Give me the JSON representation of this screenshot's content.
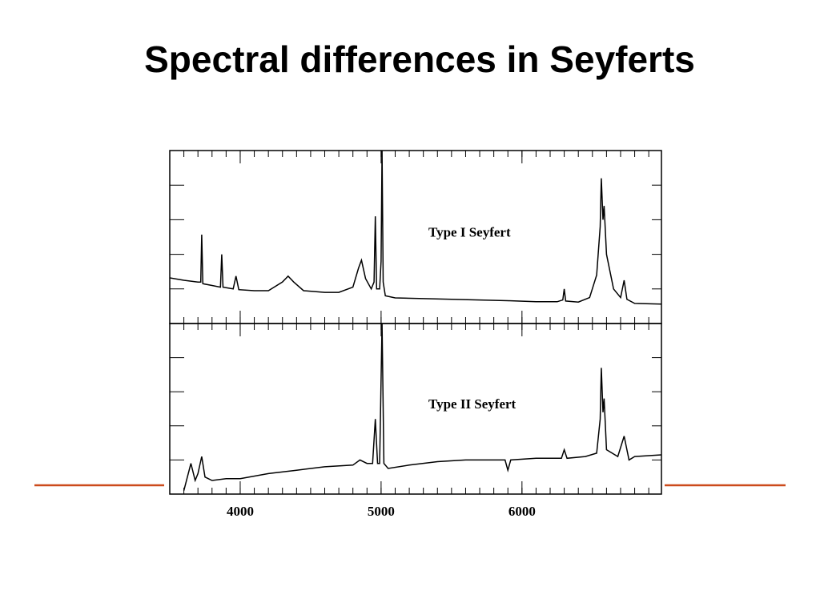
{
  "title": "Spectral differences in Seyferts",
  "chart_data": [
    {
      "type": "line",
      "annotation": "Type I Seyfert",
      "color": "#000000",
      "xlim": [
        3500,
        6990
      ],
      "xticks": [
        4000,
        5000,
        6000
      ],
      "xtick_labels": false,
      "ylim": [
        0,
        5
      ],
      "yticks": [
        1,
        2,
        3,
        4
      ],
      "x": [
        3500,
        3600,
        3700,
        3720,
        3727,
        3735,
        3800,
        3860,
        3869,
        3878,
        3950,
        3970,
        3990,
        4100,
        4200,
        4300,
        4340,
        4380,
        4450,
        4600,
        4700,
        4800,
        4840,
        4861,
        4890,
        4930,
        4950,
        4959,
        4968,
        4990,
        5000,
        5007,
        5015,
        5030,
        5100,
        5300,
        5500,
        5700,
        5900,
        6100,
        6250,
        6290,
        6300,
        6310,
        6400,
        6480,
        6530,
        6555,
        6563,
        6575,
        6583,
        6600,
        6650,
        6700,
        6725,
        6745,
        6800,
        6990
      ],
      "values": [
        1.32,
        1.25,
        1.2,
        1.2,
        2.57,
        1.15,
        1.1,
        1.05,
        2.0,
        1.05,
        1.0,
        1.37,
        0.98,
        0.95,
        0.95,
        1.2,
        1.37,
        1.2,
        0.95,
        0.9,
        0.9,
        1.05,
        1.6,
        1.83,
        1.3,
        1.0,
        1.2,
        3.1,
        1.0,
        1.0,
        1.8,
        5,
        1.2,
        0.8,
        0.74,
        0.72,
        0.7,
        0.68,
        0.66,
        0.63,
        0.63,
        0.68,
        1.0,
        0.65,
        0.62,
        0.75,
        1.4,
        2.8,
        4.2,
        3.0,
        3.4,
        2.0,
        1.0,
        0.75,
        1.25,
        0.7,
        0.58,
        0.56
      ]
    },
    {
      "type": "line",
      "annotation": "Type II Seyfert",
      "color": "#000000",
      "xlim": [
        3500,
        6990
      ],
      "xticks": [
        4000,
        5000,
        6000
      ],
      "xtick_labels": true,
      "ylim": [
        0,
        5
      ],
      "yticks": [
        1,
        2,
        3,
        4
      ],
      "x": [
        3600,
        3650,
        3680,
        3700,
        3727,
        3750,
        3800,
        3900,
        4000,
        4200,
        4400,
        4600,
        4800,
        4850,
        4900,
        4940,
        4959,
        4975,
        4990,
        5007,
        5020,
        5050,
        5200,
        5400,
        5600,
        5800,
        5880,
        5900,
        5920,
        6100,
        6280,
        6300,
        6320,
        6450,
        6530,
        6555,
        6563,
        6575,
        6583,
        6600,
        6680,
        6725,
        6760,
        6800,
        6990
      ],
      "values": [
        0.1,
        0.9,
        0.4,
        0.6,
        1.1,
        0.5,
        0.4,
        0.45,
        0.45,
        0.6,
        0.7,
        0.8,
        0.85,
        1.0,
        0.9,
        0.9,
        2.2,
        0.9,
        0.9,
        5,
        0.9,
        0.75,
        0.85,
        0.95,
        1.0,
        1.0,
        1.0,
        0.7,
        1.0,
        1.05,
        1.05,
        1.3,
        1.05,
        1.1,
        1.2,
        2.2,
        3.7,
        2.4,
        2.8,
        1.3,
        1.1,
        1.7,
        1.0,
        1.1,
        1.15
      ]
    }
  ]
}
